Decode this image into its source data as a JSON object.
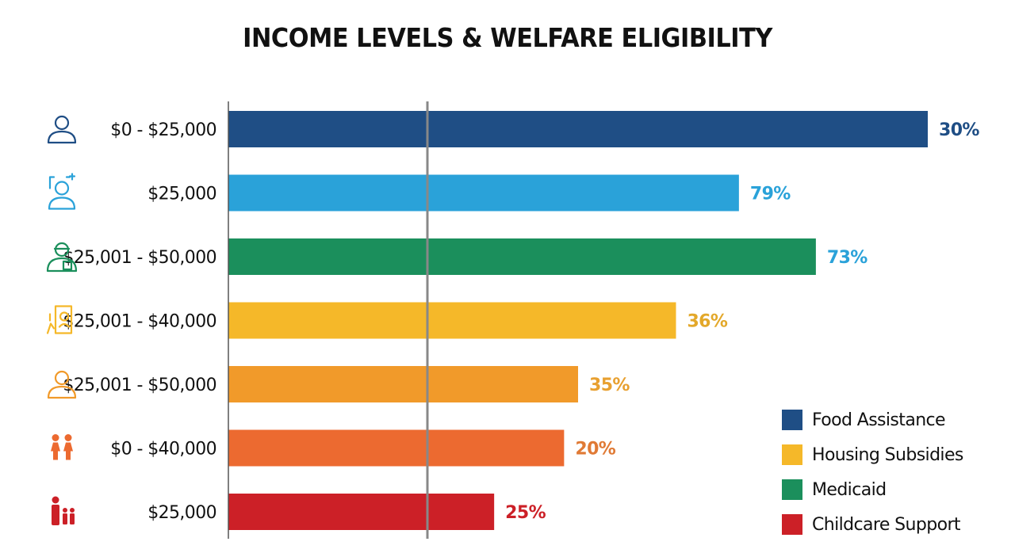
{
  "title": "INCOME LEVELS & WELFARE ELIGIBILITY",
  "chart_data": {
    "type": "bar",
    "orientation": "horizontal",
    "title": "INCOME LEVELS & WELFARE ELIGIBILITY",
    "categories": [
      "$0 - $25,000",
      "$25,000",
      "$25,001 - $50,000",
      "$25,001 - $40,000",
      "$25,001 - $50,000",
      "$0 - $40,000",
      "$25,000"
    ],
    "value_labels": [
      "30%",
      "79%",
      "73%",
      "36%",
      "35%",
      "20%",
      "25%"
    ],
    "bar_lengths": [
      100,
      73,
      84,
      64,
      50,
      48,
      38
    ],
    "bar_colors": [
      "#1f4e85",
      "#2aa2d9",
      "#1b8f5c",
      "#f5b829",
      "#f19a2a",
      "#ec6a30",
      "#cc2027"
    ],
    "label_colors": [
      "#1f4e85",
      "#2aa2d9",
      "#2aa2d9",
      "#e3a82a",
      "#e8a030",
      "#e07a35",
      "#cc2027"
    ],
    "icons": [
      "person-outline-icon",
      "person-badge-icon",
      "person-glasses-icon",
      "person-document-icon",
      "person-outline-icon",
      "family-adults-icon",
      "family-children-icon"
    ],
    "reference_line": true,
    "legend": {
      "position": "bottom-right",
      "entries": [
        {
          "name": "Food Assistance",
          "color": "#1f4e85"
        },
        {
          "name": "Housing Subsidies",
          "color": "#f5b829"
        },
        {
          "name": "Medicaid",
          "color": "#1b8f5c"
        },
        {
          "name": "Childcare Support",
          "color": "#cc2027"
        }
      ]
    },
    "grid": false
  }
}
